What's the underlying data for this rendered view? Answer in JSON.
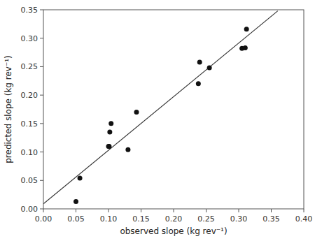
{
  "chart_data": {
    "type": "scatter",
    "xlabel": "observed slope (kg rev⁻¹)",
    "ylabel": "predicted slope (kg rev⁻¹)",
    "series": [
      {
        "type": "line",
        "color": "#333333",
        "x": [
          0.0,
          0.36
        ],
        "values": [
          0.009,
          0.348
        ]
      },
      {
        "type": "scatter",
        "color": "#111111",
        "x": [
          0.05,
          0.056,
          0.1,
          0.101,
          0.102,
          0.104,
          0.13,
          0.143,
          0.238,
          0.24,
          0.255,
          0.305,
          0.31,
          0.312
        ],
        "values": [
          0.013,
          0.054,
          0.11,
          0.11,
          0.135,
          0.15,
          0.104,
          0.17,
          0.22,
          0.258,
          0.248,
          0.282,
          0.283,
          0.316
        ]
      }
    ],
    "xlim": [
      0.0,
      0.4
    ],
    "ylim": [
      0.0,
      0.35
    ],
    "xticks": [
      {
        "value": 0.0,
        "label": "0.00"
      },
      0.05,
      {
        "value": 0.1,
        "label": "0.10"
      },
      0.15,
      {
        "value": 0.2,
        "label": "0.20"
      },
      0.25,
      {
        "value": 0.3,
        "label": "0.30"
      },
      0.35,
      {
        "value": 0.4,
        "label": "0.40"
      }
    ],
    "yticks": [
      {
        "value": 0.0,
        "label": "0.00"
      },
      0.05,
      {
        "value": 0.1,
        "label": "0.10"
      },
      0.15,
      {
        "value": 0.2,
        "label": "0.20"
      },
      0.25,
      {
        "value": 0.3,
        "label": "0.30"
      },
      0.35
    ],
    "grid": false
  }
}
